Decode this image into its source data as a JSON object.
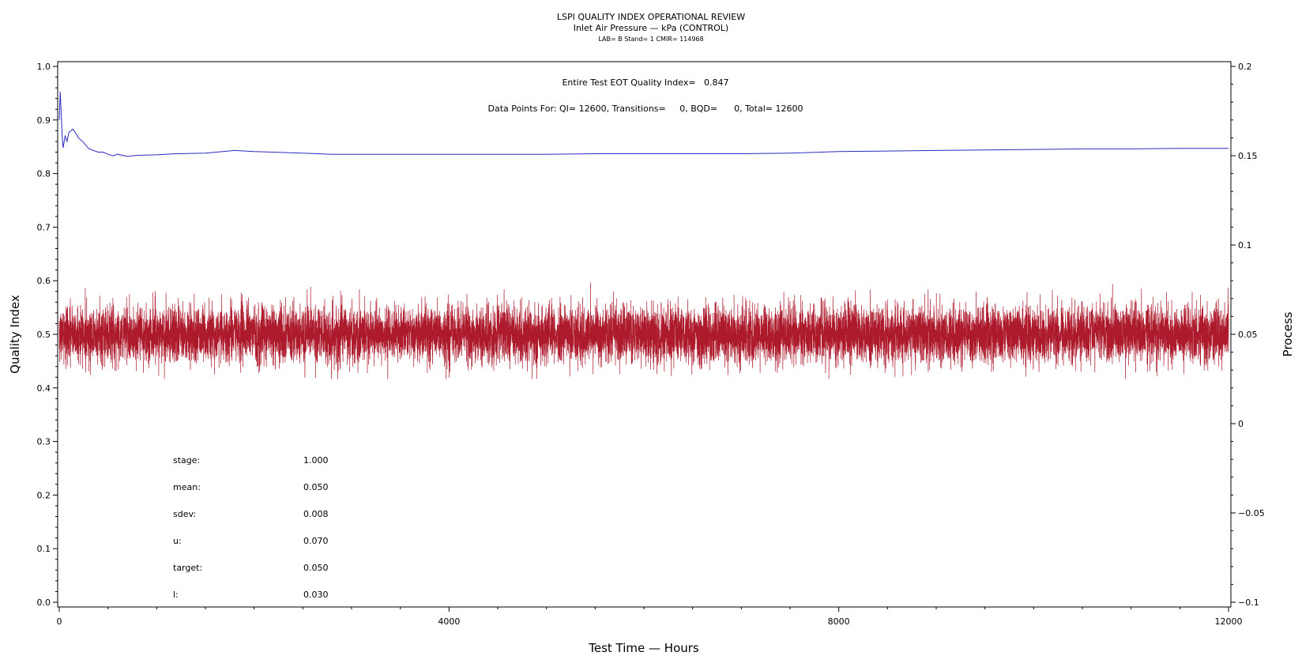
{
  "header": {
    "title": "LSPI QUALITY INDEX OPERATIONAL REVIEW",
    "subtitle": "Inlet Air Pressure — kPa (CONTROL)",
    "meta": "LAB= B Stand= 1 CMIR= 114968"
  },
  "annotations": {
    "quality_index": "Entire Test EOT Quality Index=   0.847",
    "data_points": "Data Points For: QI= 12600, Transitions=     0, BQD=      0, Total= 12600"
  },
  "stats": [
    {
      "label": "stage:",
      "value": "1.000"
    },
    {
      "label": "mean:",
      "value": "0.050"
    },
    {
      "label": "sdev:",
      "value": "0.008"
    },
    {
      "label": "u:",
      "value": "0.070"
    },
    {
      "label": "target:",
      "value": "0.050"
    },
    {
      "label": "l:",
      "value": "0.030"
    }
  ],
  "chart_data": {
    "type": "line",
    "xlabel": "Test Time — Hours",
    "ylabel": "Quality Index",
    "y2label": "Process",
    "xlim": [
      0,
      12000
    ],
    "ylim": [
      0,
      1
    ],
    "y2lim": [
      -0.1,
      0.2
    ],
    "x_ticks": [
      "0",
      "4000",
      "8000",
      "12000"
    ],
    "y_ticks": [
      "0.0",
      "0.1",
      "0.2",
      "0.3",
      "0.4",
      "0.5",
      "0.6",
      "0.7",
      "0.8",
      "0.9",
      "1.0"
    ],
    "y2_ticks": [
      "−0.1",
      "−0.05",
      "0",
      "0.05",
      "0.1",
      "0.15",
      "0.2"
    ],
    "grid": false,
    "colors": {
      "quality_index": "#2b2bc4",
      "process": "#ad1a2c"
    },
    "series": [
      {
        "axis": "left",
        "x": [
          0,
          10,
          20,
          30,
          40,
          60,
          80,
          100,
          120,
          140,
          170,
          200,
          250,
          300,
          350,
          400,
          450,
          500,
          550,
          600,
          700,
          800,
          1000,
          1200,
          1500,
          1800,
          2000,
          2200,
          2500,
          2800,
          3000,
          3500,
          4000,
          4500,
          5000,
          5500,
          6000,
          6500,
          7000,
          7500,
          8000,
          8500,
          9000,
          9500,
          10000,
          10500,
          11000,
          11500,
          12000
        ],
        "values": [
          0.9,
          0.953,
          0.91,
          0.87,
          0.848,
          0.87,
          0.86,
          0.877,
          0.88,
          0.883,
          0.875,
          0.866,
          0.858,
          0.847,
          0.843,
          0.84,
          0.84,
          0.836,
          0.833,
          0.836,
          0.832,
          0.834,
          0.835,
          0.837,
          0.838,
          0.843,
          0.841,
          0.84,
          0.838,
          0.836,
          0.836,
          0.836,
          0.836,
          0.836,
          0.836,
          0.837,
          0.837,
          0.837,
          0.837,
          0.838,
          0.841,
          0.842,
          0.843,
          0.844,
          0.845,
          0.846,
          0.846,
          0.847,
          0.847
        ]
      },
      {
        "axis": "right",
        "x_range": [
          0,
          12000
        ],
        "points": 12600,
        "mean": 0.05,
        "sdev": 0.008,
        "min": 0.025,
        "max": 0.079
      }
    ]
  }
}
